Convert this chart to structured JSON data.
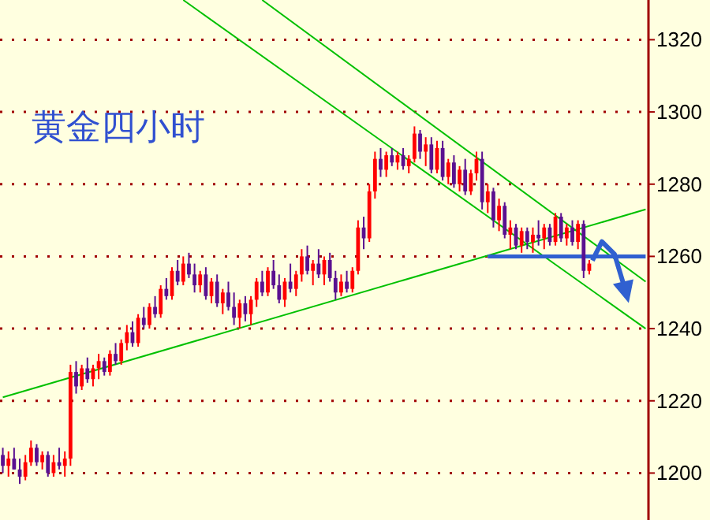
{
  "chart_data": {
    "type": "candlestick",
    "title": "黄金四小时",
    "categories": [
      null,
      null,
      null,
      null,
      null,
      null,
      null,
      null,
      null,
      null,
      null,
      null,
      null,
      null,
      null,
      null,
      null,
      null,
      null,
      null,
      null,
      null,
      null,
      null,
      null,
      null,
      null,
      null,
      null,
      null,
      null,
      null,
      null,
      null,
      null,
      null,
      null,
      null,
      null,
      null,
      null,
      null,
      null,
      null,
      null,
      null,
      null,
      null,
      null,
      null,
      null,
      null,
      null,
      null,
      null,
      null,
      null,
      null,
      null,
      null,
      null,
      null,
      null,
      null,
      null,
      null,
      null,
      null,
      null,
      null,
      null,
      null,
      null,
      null,
      null,
      null,
      null,
      null,
      null,
      null,
      null,
      null,
      null,
      null,
      null,
      null,
      null,
      null,
      null,
      null,
      null,
      null,
      null,
      null,
      null,
      null,
      null,
      null,
      null,
      null,
      null,
      null,
      null,
      null,
      null,
      null,
      null,
      null,
      null,
      null,
      null,
      null,
      null,
      null,
      null
    ],
    "ohlc": [
      [
        1205,
        1207,
        1200,
        1202
      ],
      [
        1202,
        1206,
        1199,
        1204
      ],
      [
        1204,
        1207,
        1201,
        1201
      ],
      [
        1201,
        1204,
        1197,
        1199
      ],
      [
        1199,
        1205,
        1198,
        1203
      ],
      [
        1203,
        1209,
        1202,
        1207
      ],
      [
        1207,
        1208,
        1202,
        1203
      ],
      [
        1203,
        1206,
        1201,
        1205
      ],
      [
        1205,
        1206,
        1199,
        1200
      ],
      [
        1200,
        1205,
        1199,
        1203
      ],
      [
        1203,
        1207,
        1201,
        1202
      ],
      [
        1202,
        1206,
        1199,
        1204
      ],
      [
        1204,
        1230,
        1202,
        1228
      ],
      [
        1228,
        1231,
        1222,
        1224
      ],
      [
        1224,
        1230,
        1223,
        1229
      ],
      [
        1229,
        1232,
        1225,
        1226
      ],
      [
        1226,
        1230,
        1224,
        1229
      ],
      [
        1229,
        1233,
        1226,
        1231
      ],
      [
        1231,
        1232,
        1227,
        1228
      ],
      [
        1228,
        1234,
        1227,
        1233
      ],
      [
        1233,
        1236,
        1230,
        1231
      ],
      [
        1231,
        1237,
        1230,
        1236
      ],
      [
        1236,
        1241,
        1234,
        1239
      ],
      [
        1239,
        1242,
        1235,
        1236
      ],
      [
        1236,
        1244,
        1235,
        1243
      ],
      [
        1243,
        1246,
        1240,
        1241
      ],
      [
        1241,
        1247,
        1240,
        1246
      ],
      [
        1246,
        1249,
        1243,
        1244
      ],
      [
        1244,
        1252,
        1243,
        1251
      ],
      [
        1251,
        1254,
        1248,
        1249
      ],
      [
        1249,
        1257,
        1248,
        1256
      ],
      [
        1256,
        1259,
        1252,
        1253
      ],
      [
        1253,
        1260,
        1252,
        1258
      ],
      [
        1258,
        1261,
        1254,
        1255
      ],
      [
        1255,
        1258,
        1250,
        1252
      ],
      [
        1252,
        1256,
        1250,
        1255
      ],
      [
        1255,
        1257,
        1248,
        1249
      ],
      [
        1249,
        1254,
        1247,
        1253
      ],
      [
        1253,
        1255,
        1246,
        1247
      ],
      [
        1247,
        1251,
        1244,
        1250
      ],
      [
        1250,
        1253,
        1245,
        1246
      ],
      [
        1246,
        1250,
        1241,
        1243
      ],
      [
        1243,
        1248,
        1240,
        1247
      ],
      [
        1247,
        1249,
        1242,
        1244
      ],
      [
        1244,
        1249,
        1241,
        1248
      ],
      [
        1248,
        1254,
        1246,
        1253
      ],
      [
        1253,
        1256,
        1249,
        1250
      ],
      [
        1250,
        1257,
        1249,
        1256
      ],
      [
        1256,
        1259,
        1251,
        1252
      ],
      [
        1252,
        1255,
        1247,
        1248
      ],
      [
        1248,
        1254,
        1246,
        1253
      ],
      [
        1253,
        1258,
        1250,
        1251
      ],
      [
        1251,
        1256,
        1249,
        1255
      ],
      [
        1255,
        1262,
        1253,
        1260
      ],
      [
        1260,
        1263,
        1255,
        1256
      ],
      [
        1256,
        1259,
        1252,
        1258
      ],
      [
        1258,
        1262,
        1254,
        1255
      ],
      [
        1255,
        1260,
        1252,
        1259
      ],
      [
        1259,
        1261,
        1253,
        1254
      ],
      [
        1254,
        1256,
        1248,
        1250
      ],
      [
        1250,
        1255,
        1249,
        1253
      ],
      [
        1253,
        1256,
        1250,
        1251
      ],
      [
        1251,
        1257,
        1250,
        1256
      ],
      [
        1256,
        1270,
        1255,
        1268
      ],
      [
        1268,
        1271,
        1262,
        1265
      ],
      [
        1265,
        1280,
        1264,
        1278
      ],
      [
        1278,
        1289,
        1276,
        1287
      ],
      [
        1287,
        1290,
        1282,
        1284
      ],
      [
        1284,
        1289,
        1282,
        1288
      ],
      [
        1288,
        1290,
        1285,
        1286
      ],
      [
        1286,
        1289,
        1284,
        1288
      ],
      [
        1288,
        1290,
        1284,
        1285
      ],
      [
        1285,
        1288,
        1283,
        1287
      ],
      [
        1287,
        1296,
        1286,
        1294
      ],
      [
        1294,
        1295,
        1287,
        1289
      ],
      [
        1289,
        1293,
        1285,
        1291
      ],
      [
        1291,
        1293,
        1283,
        1284
      ],
      [
        1284,
        1292,
        1283,
        1290
      ],
      [
        1290,
        1292,
        1281,
        1282
      ],
      [
        1282,
        1287,
        1280,
        1286
      ],
      [
        1286,
        1288,
        1279,
        1280
      ],
      [
        1280,
        1285,
        1278,
        1284
      ],
      [
        1284,
        1287,
        1277,
        1278
      ],
      [
        1278,
        1284,
        1277,
        1283
      ],
      [
        1283,
        1289,
        1281,
        1287
      ],
      [
        1287,
        1289,
        1273,
        1275
      ],
      [
        1275,
        1280,
        1272,
        1278
      ],
      [
        1278,
        1279,
        1268,
        1270
      ],
      [
        1270,
        1276,
        1267,
        1274
      ],
      [
        1274,
        1275,
        1265,
        1266
      ],
      [
        1266,
        1270,
        1262,
        1268
      ],
      [
        1268,
        1269,
        1262,
        1263
      ],
      [
        1263,
        1268,
        1261,
        1267
      ],
      [
        1267,
        1268,
        1262,
        1264
      ],
      [
        1264,
        1268,
        1261,
        1266
      ],
      [
        1266,
        1270,
        1263,
        1265
      ],
      [
        1265,
        1269,
        1262,
        1268
      ],
      [
        1268,
        1269,
        1263,
        1264
      ],
      [
        1264,
        1272,
        1263,
        1271
      ],
      [
        1271,
        1272,
        1264,
        1265
      ],
      [
        1265,
        1269,
        1263,
        1268
      ],
      [
        1268,
        1270,
        1263,
        1264
      ],
      [
        1264,
        1270,
        1262,
        1269
      ],
      [
        1269,
        1270,
        1254,
        1256
      ],
      [
        1256,
        1259,
        1255,
        1258
      ],
      null,
      null,
      null,
      null,
      null,
      null,
      null,
      null,
      null,
      null
    ],
    "series": [
      {
        "type": "line",
        "color": "#00c000",
        "values": [
          1221,
          null,
          null,
          null,
          null,
          null,
          null,
          null,
          null,
          null,
          null,
          null,
          null,
          null,
          null,
          null,
          null,
          null,
          null,
          null,
          null,
          null,
          null,
          null,
          null,
          null,
          null,
          null,
          null,
          null,
          null,
          null,
          null,
          null,
          null,
          null,
          null,
          null,
          null,
          null,
          null,
          null,
          null,
          null,
          null,
          null,
          null,
          null,
          null,
          null,
          null,
          null,
          null,
          null,
          null,
          null,
          null,
          null,
          null,
          null,
          null,
          null,
          null,
          null,
          null,
          null,
          null,
          null,
          null,
          null,
          null,
          null,
          null,
          null,
          null,
          null,
          null,
          null,
          null,
          null,
          null,
          null,
          null,
          null,
          null,
          null,
          null,
          null,
          null,
          null,
          null,
          null,
          null,
          null,
          null,
          null,
          null,
          null,
          null,
          null,
          null,
          null,
          null,
          null,
          null,
          null,
          null,
          null,
          null,
          null,
          null,
          null,
          null,
          null,
          1273
        ]
      },
      {
        "type": "line",
        "color": "#00c000",
        "values": [
          null,
          null,
          null,
          null,
          null,
          null,
          null,
          null,
          null,
          null,
          null,
          null,
          null,
          null,
          null,
          null,
          null,
          null,
          null,
          null,
          null,
          null,
          null,
          null,
          null,
          null,
          null,
          null,
          null,
          null,
          null,
          null,
          1331,
          null,
          null,
          null,
          null,
          null,
          null,
          null,
          null,
          null,
          null,
          null,
          null,
          null,
          null,
          null,
          null,
          null,
          null,
          null,
          null,
          null,
          null,
          null,
          null,
          null,
          null,
          null,
          null,
          null,
          null,
          null,
          null,
          null,
          null,
          null,
          null,
          null,
          null,
          null,
          null,
          null,
          null,
          null,
          null,
          null,
          null,
          null,
          null,
          null,
          null,
          null,
          null,
          null,
          null,
          null,
          null,
          null,
          null,
          null,
          null,
          null,
          null,
          null,
          null,
          null,
          null,
          null,
          null,
          null,
          null,
          null,
          null,
          null,
          null,
          null,
          null,
          null,
          null,
          null,
          null,
          null,
          1240
        ]
      },
      {
        "type": "line",
        "color": "#00c000",
        "values": [
          null,
          null,
          null,
          null,
          null,
          null,
          null,
          null,
          null,
          null,
          null,
          null,
          null,
          null,
          null,
          null,
          null,
          null,
          null,
          null,
          null,
          null,
          null,
          null,
          null,
          null,
          null,
          null,
          null,
          null,
          null,
          null,
          null,
          null,
          null,
          null,
          null,
          null,
          null,
          null,
          null,
          null,
          null,
          null,
          null,
          null,
          1331,
          null,
          null,
          null,
          null,
          null,
          null,
          null,
          null,
          null,
          null,
          null,
          null,
          null,
          null,
          null,
          null,
          null,
          null,
          null,
          null,
          null,
          null,
          null,
          null,
          null,
          null,
          null,
          null,
          null,
          null,
          null,
          null,
          null,
          null,
          null,
          null,
          null,
          null,
          null,
          null,
          null,
          null,
          null,
          null,
          null,
          null,
          null,
          null,
          null,
          null,
          null,
          null,
          null,
          null,
          null,
          null,
          null,
          null,
          null,
          null,
          null,
          null,
          null,
          null,
          null,
          null,
          null,
          1253
        ]
      },
      {
        "type": "line",
        "color": "#3060d0",
        "values": [
          null,
          null,
          null,
          null,
          null,
          null,
          null,
          null,
          null,
          null,
          null,
          null,
          null,
          null,
          null,
          null,
          null,
          null,
          null,
          null,
          null,
          null,
          null,
          null,
          null,
          null,
          null,
          null,
          null,
          null,
          null,
          null,
          null,
          null,
          null,
          null,
          null,
          null,
          null,
          null,
          null,
          null,
          null,
          null,
          null,
          null,
          null,
          null,
          null,
          null,
          null,
          null,
          null,
          null,
          null,
          null,
          null,
          null,
          null,
          null,
          null,
          null,
          null,
          null,
          null,
          null,
          null,
          null,
          null,
          null,
          null,
          null,
          null,
          null,
          null,
          null,
          null,
          null,
          null,
          null,
          null,
          null,
          null,
          null,
          null,
          null,
          1260,
          null,
          null,
          null,
          null,
          null,
          null,
          null,
          null,
          null,
          null,
          null,
          null,
          null,
          null,
          null,
          null,
          null,
          null,
          null,
          null,
          null,
          null,
          null,
          null,
          null,
          null,
          null,
          1260
        ]
      }
    ],
    "colors": [
      "#5a1090",
      "#ff0000",
      "#5a1090",
      "#5a1090",
      "#ff0000",
      "#ff0000",
      "#5a1090",
      "#ff0000",
      "#5a1090",
      "#ff0000",
      "#5a1090",
      "#ff0000",
      "#ff0000",
      "#5a1090",
      "#ff0000",
      "#5a1090",
      "#ff0000",
      "#ff0000",
      "#5a1090",
      "#ff0000",
      "#5a1090",
      "#ff0000",
      "#ff0000",
      "#5a1090",
      "#ff0000",
      "#5a1090",
      "#ff0000",
      "#5a1090",
      "#ff0000",
      "#5a1090",
      "#ff0000",
      "#5a1090",
      "#ff0000",
      "#5a1090",
      "#5a1090",
      "#ff0000",
      "#5a1090",
      "#ff0000",
      "#5a1090",
      "#ff0000",
      "#5a1090",
      "#5a1090",
      "#ff0000",
      "#5a1090",
      "#ff0000",
      "#ff0000",
      "#5a1090",
      "#ff0000",
      "#5a1090",
      "#5a1090",
      "#ff0000",
      "#5a1090",
      "#ff0000",
      "#ff0000",
      "#5a1090",
      "#ff0000",
      "#5a1090",
      "#ff0000",
      "#5a1090",
      "#5a1090",
      "#ff0000",
      "#5a1090",
      "#ff0000",
      "#ff0000",
      "#5a1090",
      "#ff0000",
      "#ff0000",
      "#5a1090",
      "#ff0000",
      "#5a1090",
      "#ff0000",
      "#5a1090",
      "#ff0000",
      "#ff0000",
      "#5a1090",
      "#ff0000",
      "#5a1090",
      "#ff0000",
      "#5a1090",
      "#ff0000",
      "#5a1090",
      "#ff0000",
      "#5a1090",
      "#ff0000",
      "#ff0000",
      "#5a1090",
      "#ff0000",
      "#5a1090",
      "#ff0000",
      "#5a1090",
      "#ff0000",
      "#5a1090",
      "#ff0000",
      "#5a1090",
      "#ff0000",
      "#5a1090",
      "#ff0000",
      "#5a1090",
      "#ff0000",
      "#5a1090",
      "#ff0000",
      "#5a1090",
      "#ff0000",
      "#5a1090",
      "#ff0000",
      null,
      null,
      null,
      null,
      null,
      null,
      null,
      null,
      null,
      null
    ],
    "ylim": [
      1187,
      1331
    ],
    "yticks": [
      1200,
      1220,
      1240,
      1260,
      1280,
      1300,
      1320
    ],
    "grid": "y",
    "tick_labels": "y"
  }
}
